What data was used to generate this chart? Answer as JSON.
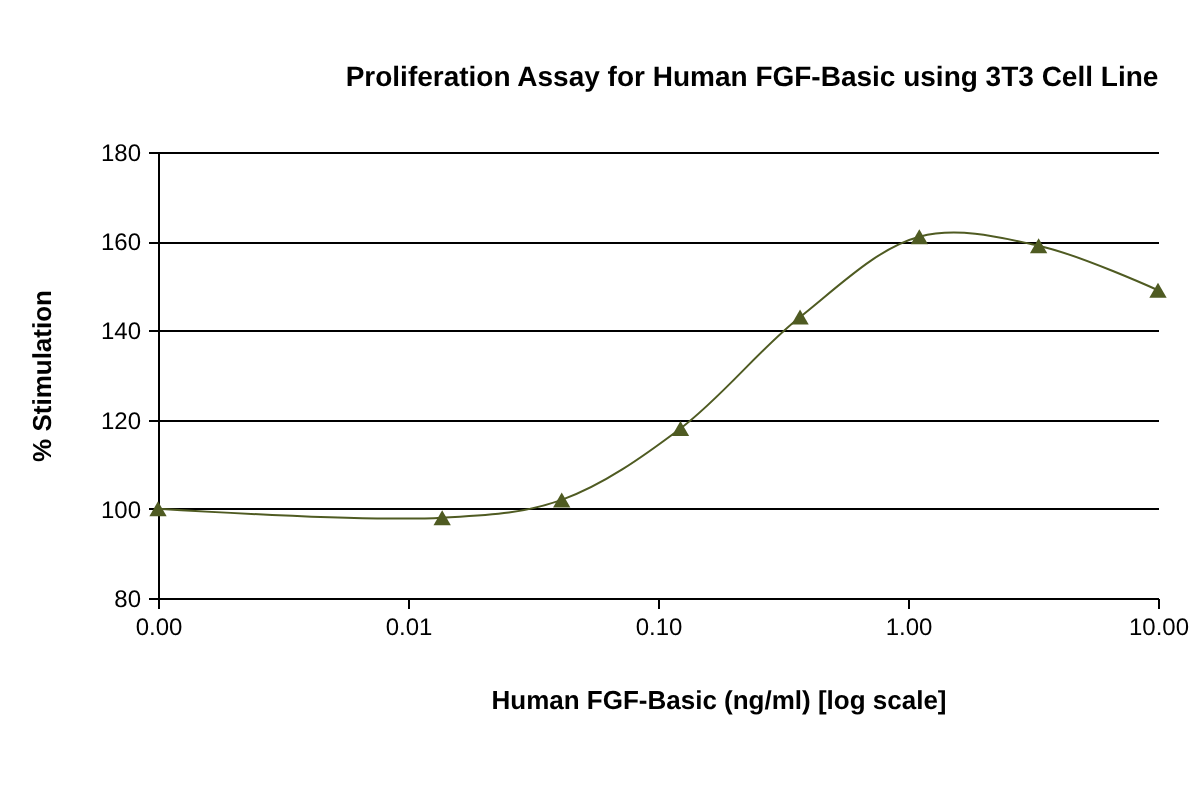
{
  "chart_data": {
    "type": "line",
    "title": "Proliferation Assay  for Human FGF-Basic using 3T3 Cell Line",
    "xlabel": "Human FGF-Basic (ng/ml) [log scale]",
    "ylabel": "% Stimulation",
    "x": [
      0.001,
      0.0137,
      0.0412,
      0.123,
      0.37,
      1.11,
      3.33,
      10
    ],
    "series": [
      {
        "color": "#4f5b22",
        "values": [
          100,
          98,
          102,
          118,
          143,
          161,
          159,
          149
        ]
      }
    ],
    "log": "x",
    "xlim": [
      0.001,
      10
    ],
    "xticks": [
      {
        "value": 0.001,
        "label": "0.00"
      },
      {
        "value": 0.01,
        "label": "0.01"
      },
      {
        "value": 0.1,
        "label": "0.10"
      },
      {
        "value": 1,
        "label": "1.00"
      },
      {
        "value": 10,
        "label": "10.00"
      }
    ],
    "ylim": [
      80,
      180
    ],
    "yticks": [
      80,
      100,
      120,
      140,
      160,
      180
    ],
    "grid": "y",
    "marker": "triangle",
    "line_style": "solid"
  }
}
